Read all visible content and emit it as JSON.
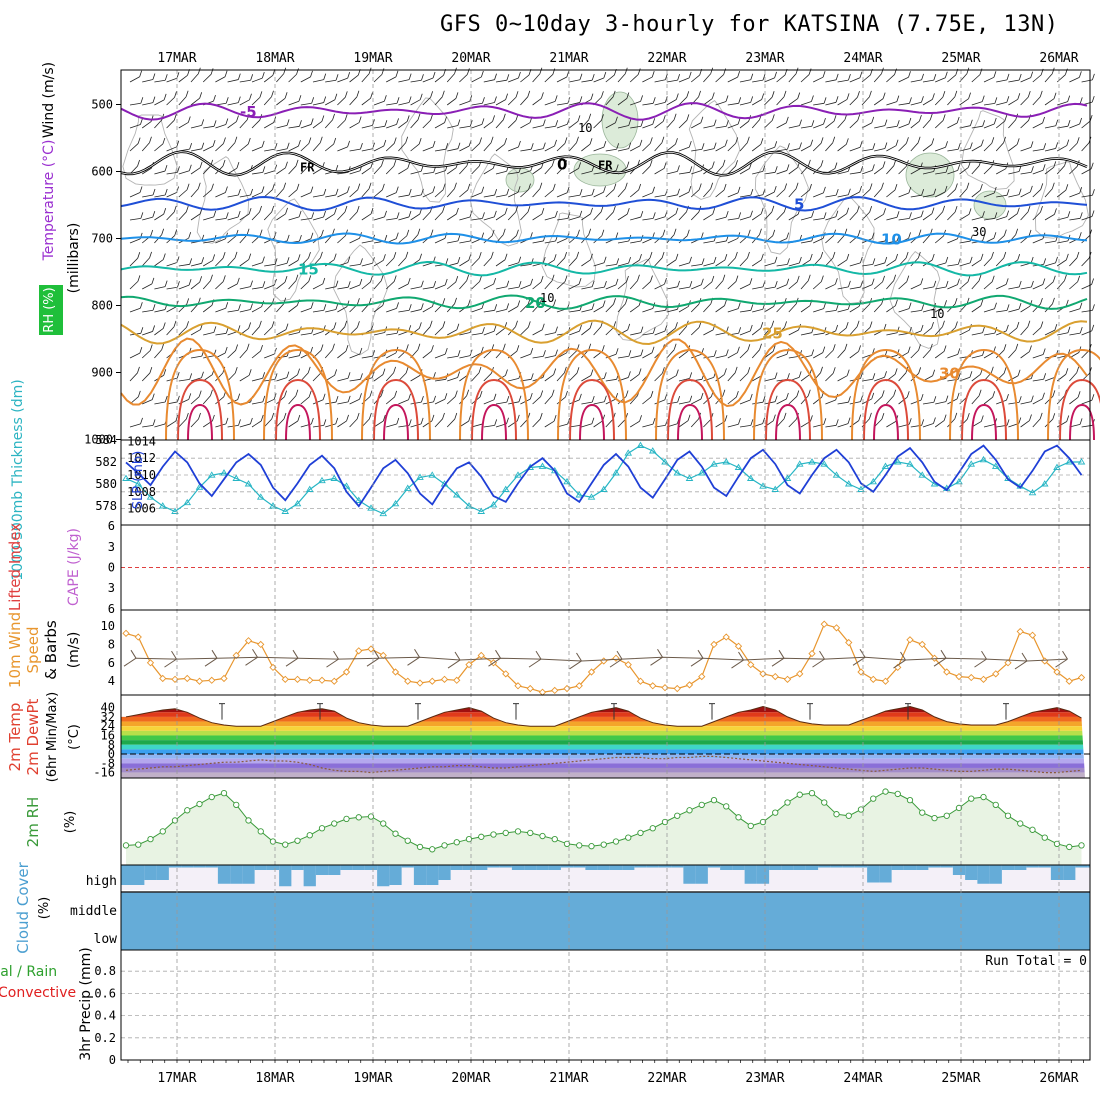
{
  "title": "GFS 0~10day 3-hourly for KATSINA (7.75E, 13N)",
  "dates": [
    "17MAR",
    "18MAR",
    "19MAR",
    "20MAR",
    "21MAR",
    "22MAR",
    "23MAR",
    "24MAR",
    "25MAR",
    "26MAR"
  ],
  "chart_data": [
    {
      "panel": "upper-air",
      "type": "contour",
      "ylabel": "(millibars)",
      "yticks": [
        500,
        600,
        700,
        800,
        900,
        1000
      ],
      "ylim": [
        450,
        1000
      ],
      "axis_titles": {
        "wind": "Wind (m/s)",
        "temperature": "Temperature (°C)",
        "rh": "RH (%)"
      },
      "isotherms": [
        {
          "label": "-5",
          "level": 510,
          "amp": 10,
          "color": "#8a1fb5"
        },
        {
          "label": "0",
          "level": 588,
          "amp": 14,
          "color": "#000000",
          "freezing": true,
          "marker": "FR"
        },
        {
          "label": "5",
          "level": 648,
          "amp": 8,
          "color": "#1f4fd6"
        },
        {
          "label": "10",
          "level": 700,
          "amp": 6,
          "color": "#1e90e8"
        },
        {
          "label": "15",
          "level": 745,
          "amp": 8,
          "color": "#14b8a6"
        },
        {
          "label": "20",
          "level": 795,
          "amp": 8,
          "color": "#10a870"
        },
        {
          "label": "25",
          "level": 840,
          "amp": 14,
          "color": "#d9a030"
        },
        {
          "label": "30",
          "level": 900,
          "amp": 40,
          "color": "#e88a30"
        }
      ],
      "rh_labels": [
        "10",
        "10",
        "10",
        "30"
      ]
    },
    {
      "panel": "thickness-slp",
      "type": "line",
      "ylabel_left": "1000-500mb Thickness (dm)",
      "ylabel_right": "SLP (mb)",
      "yticks_left": [
        578,
        580,
        582,
        584
      ],
      "yticks_right": [
        1006,
        1008,
        1010,
        1012,
        1014
      ],
      "ylim_left": [
        577,
        584
      ],
      "ylim_right": [
        1005,
        1014
      ],
      "thickness": [
        580.5,
        580.0,
        578.8,
        578.0,
        577.5,
        578.3,
        579.7,
        580.8,
        581.0,
        580.5,
        580.0,
        578.8,
        578.0,
        577.5,
        578.2,
        579.5,
        580.3,
        580.5,
        579.8,
        578.5,
        577.8,
        577.3,
        578.2,
        579.6,
        580.6,
        580.8,
        580.0,
        579.0,
        578.0,
        577.5,
        578.1,
        579.5,
        580.8,
        581.5,
        581.6,
        581.2,
        580.2,
        579.0,
        578.8,
        579.5,
        581.0,
        582.8,
        583.5,
        583.0,
        582.0,
        581.0,
        580.5,
        581.0,
        581.8,
        582.0,
        581.5,
        580.5,
        579.8,
        579.5,
        580.5,
        581.8,
        582.0,
        581.8,
        580.8,
        580.0,
        579.5,
        580.2,
        581.6,
        582.0,
        581.8,
        580.8,
        580.0,
        579.6,
        580.2,
        581.8,
        582.2,
        581.6,
        580.5,
        579.8,
        579.2,
        580.0,
        581.5,
        582.0,
        582.0,
        581.0,
        580.0,
        579.4
      ],
      "slp": [
        1011.5,
        1010.2,
        1008.8,
        1011.0,
        1012.8,
        1011.5,
        1009.0,
        1007.5,
        1009.5,
        1011.5,
        1012.5,
        1011.2,
        1008.5,
        1007.0,
        1009.0,
        1011.2,
        1012.3,
        1010.8,
        1008.0,
        1006.3,
        1008.5,
        1010.8,
        1011.8,
        1010.2,
        1007.8,
        1006.5,
        1008.8,
        1010.8,
        1011.5,
        1009.8,
        1007.5,
        1006.8,
        1009.0,
        1011.0,
        1012.0,
        1010.5,
        1007.8,
        1006.8,
        1009.0,
        1011.2,
        1012.5,
        1011.0,
        1008.5,
        1007.3,
        1009.5,
        1011.8,
        1012.8,
        1011.0,
        1008.5,
        1007.5,
        1009.8,
        1012.0,
        1013.0,
        1011.3,
        1008.8,
        1007.8,
        1010.0,
        1012.0,
        1013.0,
        1011.5,
        1009.0,
        1008.0,
        1010.0,
        1012.2,
        1013.2,
        1011.5,
        1009.2,
        1008.2,
        1010.3,
        1012.5,
        1013.5,
        1011.8,
        1009.5,
        1008.5,
        1010.5,
        1012.8,
        1013.5,
        1012.0,
        1010.0,
        1009.2,
        1010.2,
        1011.5
      ]
    },
    {
      "panel": "stability",
      "type": "line",
      "ylabel_left": "Lifted Index",
      "ylabel_right": "CAPE (J/kg)",
      "yticks": [
        6,
        3,
        0,
        -3,
        -6
      ],
      "ylim": [
        -6,
        6
      ],
      "zero_line": 0
    },
    {
      "panel": "wind10m",
      "type": "line",
      "ylabel": "10m Wind Speed & Barbs (m/s)",
      "yticks": [
        4,
        6,
        8,
        10
      ],
      "ylim": [
        2.5,
        11
      ],
      "speed": [
        9.2,
        8.8,
        6.0,
        4.3,
        4.2,
        4.3,
        4.0,
        4.1,
        4.3,
        6.8,
        8.4,
        8.0,
        5.5,
        4.2,
        4.2,
        4.1,
        4.1,
        4.0,
        5.0,
        7.3,
        7.5,
        6.8,
        5.0,
        4.0,
        3.8,
        4.0,
        4.2,
        4.1,
        5.8,
        6.8,
        6.0,
        4.8,
        3.5,
        3.2,
        2.8,
        3.0,
        3.2,
        3.5,
        5.0,
        6.2,
        6.5,
        5.8,
        4.0,
        3.5,
        3.3,
        3.2,
        3.6,
        4.5,
        8.0,
        8.8,
        7.8,
        5.8,
        4.8,
        4.5,
        4.2,
        4.8,
        7.0,
        10.2,
        9.8,
        8.2,
        5.0,
        4.2,
        4.0,
        5.5,
        8.5,
        8.0,
        6.5,
        5.0,
        4.5,
        4.4,
        4.2,
        4.8,
        6.0,
        9.4,
        9.0,
        6.2,
        5.0,
        4.0,
        4.4,
        5.5,
        8.8,
        6.0
      ],
      "barb_speed": [
        6.5,
        6.4,
        6.5,
        6.6,
        6.5,
        6.4,
        6.5,
        6.6,
        6.3,
        6.5,
        6.4,
        6.2,
        6.4,
        6.6,
        6.5,
        6.3,
        6.5,
        6.4,
        6.6,
        6.3,
        6.5,
        6.4,
        6.2,
        6.4
      ]
    },
    {
      "panel": "temperature2m",
      "type": "area",
      "ylabel": "2m Temp 2m DewPt (6hr Min/Max) (°C)",
      "yticks": [
        40,
        32,
        24,
        16,
        8,
        0,
        -8,
        -16
      ],
      "ylim": [
        -22,
        44
      ],
      "temp": [
        32,
        34,
        36,
        38,
        39,
        36,
        31,
        27,
        25,
        24,
        24,
        24,
        28,
        32,
        36,
        38,
        39,
        37,
        31,
        27,
        25,
        24,
        24,
        24,
        28,
        32,
        36,
        38,
        40,
        37,
        31,
        27,
        25,
        24,
        24,
        24,
        28,
        32,
        36,
        38,
        40,
        37,
        31,
        27,
        25,
        24,
        24,
        24,
        28,
        32,
        36,
        38,
        41,
        38,
        32,
        28,
        26,
        25,
        25,
        25,
        29,
        33,
        37,
        39,
        41,
        38,
        32,
        28,
        26,
        25,
        25,
        25,
        28,
        32,
        36,
        38,
        40,
        37,
        31,
        27,
        25,
        24
      ],
      "dewpoint": [
        -14,
        -13,
        -12,
        -11,
        -11,
        -10,
        -9,
        -8,
        -7,
        -7,
        -6,
        -5,
        -6,
        -6,
        -7,
        -9,
        -12,
        -14,
        -15,
        -15,
        -16,
        -15,
        -14,
        -13,
        -12,
        -11,
        -11,
        -10,
        -10,
        -11,
        -12,
        -12,
        -11,
        -10,
        -9,
        -8,
        -7,
        -6,
        -5,
        -4,
        -3,
        -3,
        -3,
        -4,
        -4,
        -3,
        -3,
        -2,
        -2,
        -3,
        -4,
        -5,
        -6,
        -7,
        -8,
        -9,
        -10,
        -11,
        -12,
        -13,
        -14,
        -15,
        -14,
        -13,
        -12,
        -12,
        -13,
        -14,
        -15,
        -15,
        -14,
        -13,
        -13,
        -14,
        -15,
        -16,
        -16,
        -15,
        -14,
        -14,
        -15,
        -16
      ]
    },
    {
      "panel": "rh2m",
      "type": "area",
      "ylabel": "2m RH (%)",
      "ylim": [
        0,
        100
      ],
      "rh": [
        20,
        21,
        28,
        38,
        52,
        65,
        73,
        82,
        87,
        72,
        52,
        38,
        25,
        21,
        26,
        33,
        42,
        48,
        54,
        56,
        57,
        48,
        35,
        26,
        18,
        15,
        20,
        24,
        28,
        31,
        34,
        36,
        38,
        36,
        32,
        28,
        22,
        20,
        19,
        21,
        25,
        30,
        36,
        42,
        50,
        58,
        65,
        72,
        78,
        70,
        56,
        45,
        50,
        62,
        75,
        85,
        87,
        75,
        60,
        58,
        66,
        80,
        89,
        86,
        78,
        62,
        55,
        58,
        68,
        80,
        82,
        72,
        58,
        48,
        40,
        30,
        22,
        18,
        20,
        27,
        30,
        31
      ]
    },
    {
      "panel": "cloud-cover",
      "type": "bar",
      "ylabel": "Cloud Cover (%)",
      "levels": [
        "high",
        "middle",
        "low"
      ],
      "high": [
        80,
        80,
        60,
        60,
        10,
        10,
        10,
        10,
        75,
        75,
        75,
        20,
        20,
        85,
        20,
        85,
        40,
        40,
        20,
        20,
        20,
        85,
        80,
        10,
        80,
        80,
        60,
        20,
        20,
        20,
        10,
        10,
        20,
        20,
        20,
        20,
        10,
        10,
        20,
        20,
        20,
        20,
        10,
        10,
        10,
        10,
        75,
        75,
        10,
        20,
        20,
        75,
        75,
        20,
        20,
        20,
        20,
        10,
        10,
        10,
        10,
        70,
        70,
        20,
        20,
        20,
        10,
        10,
        40,
        60,
        75,
        75,
        20,
        20,
        10,
        10,
        60,
        60,
        10,
        10,
        85,
        85
      ],
      "middle": 100,
      "low": 100
    },
    {
      "panel": "precip",
      "type": "bar",
      "ylabel": "3hr Precip (mm)",
      "legend": [
        "Total / Rain",
        "Convective"
      ],
      "yticks": [
        0,
        0.2,
        0.4,
        0.6,
        0.8
      ],
      "ylim": [
        0,
        0.9
      ],
      "values": [],
      "run_total": "Run Total = 0"
    }
  ]
}
